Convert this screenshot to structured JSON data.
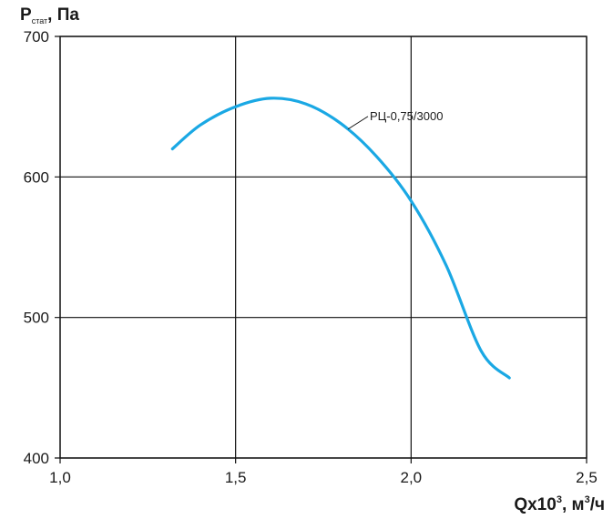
{
  "chart_data": {
    "type": "line",
    "ylabel": {
      "main": "P",
      "sub": "стат",
      "rest": ", Па"
    },
    "xlabel": {
      "main": "Qx10",
      "sup1": "3",
      "mid": ", м",
      "sup2": "3",
      "rest": "/ч"
    },
    "xlim": [
      1.0,
      2.5
    ],
    "ylim": [
      400,
      700
    ],
    "x_ticks": [
      1.0,
      1.5,
      2.0,
      2.5
    ],
    "x_tick_labels": [
      "1,0",
      "1,5",
      "2,0",
      "2,5"
    ],
    "y_ticks": [
      400,
      500,
      600,
      700
    ],
    "y_tick_labels": [
      "400",
      "500",
      "600",
      "700"
    ],
    "grid": true,
    "colors": {
      "series": "#1aa8e4"
    },
    "series": [
      {
        "name": "РЦ-0,75/3000",
        "x": [
          1.32,
          1.4,
          1.5,
          1.6,
          1.7,
          1.8,
          1.9,
          2.0,
          2.1,
          2.2,
          2.28
        ],
        "y": [
          620,
          637,
          650,
          656,
          652,
          638,
          615,
          583,
          537,
          476,
          457
        ]
      }
    ]
  }
}
